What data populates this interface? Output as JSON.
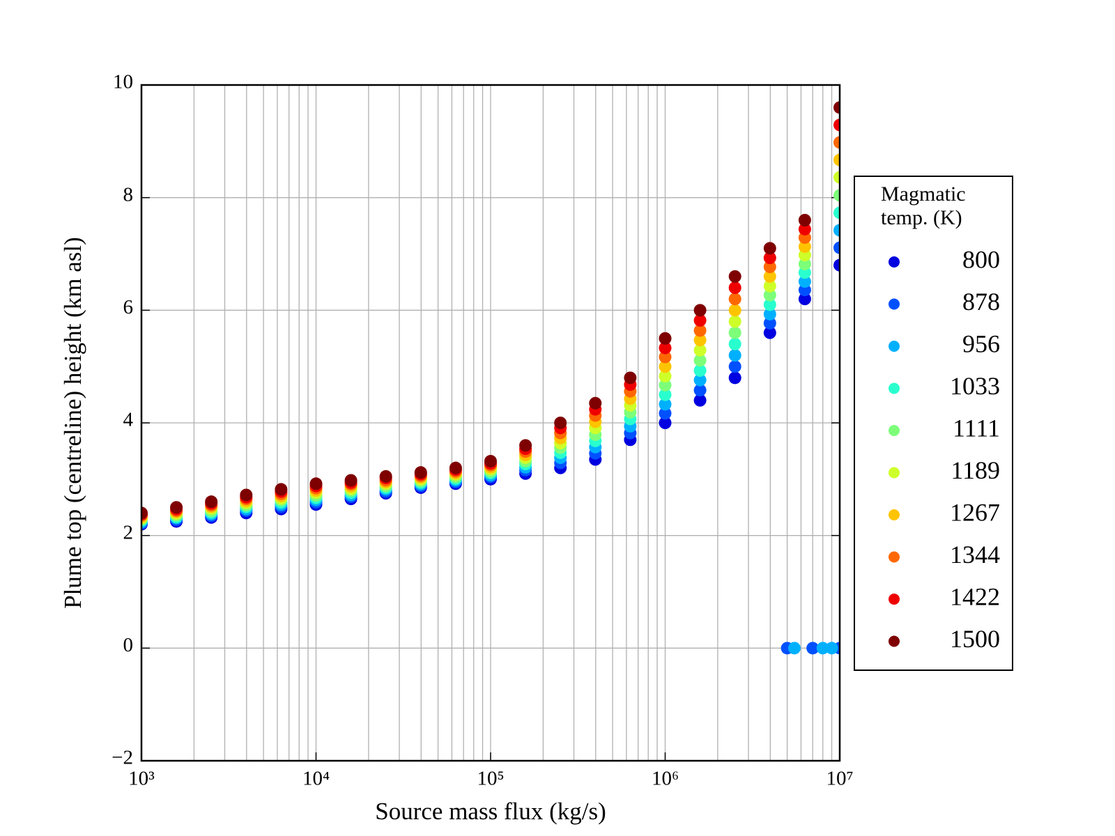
{
  "chart_data": {
    "type": "scatter",
    "x_label": "Source mass flux (kg/s)",
    "y_label": "Plume top (centreline) height (km asl)",
    "legend_title": "Magmatic temp. (K)",
    "legend": "outside-right",
    "xscale": "log",
    "grid": true,
    "xlim": [
      1000,
      10000000
    ],
    "ylim": [
      -2,
      10
    ],
    "xticks": [
      {
        "value": 1000,
        "label": "10³"
      },
      {
        "value": 10000,
        "label": "10⁴"
      },
      {
        "value": 100000,
        "label": "10⁵"
      },
      {
        "value": 1000000,
        "label": "10⁶"
      },
      {
        "value": 10000000,
        "label": "10⁷"
      }
    ],
    "yticks": [
      {
        "value": -2,
        "label": "−2"
      },
      0,
      2,
      4,
      6,
      8,
      10
    ],
    "series": [
      {
        "name": "800",
        "color": "#0000e0",
        "x": [
          1000,
          1585,
          2512,
          3981,
          6310,
          10000,
          15849,
          25119,
          39811,
          63096,
          100000,
          158489,
          251189,
          398107,
          630957,
          1000000,
          1584893,
          2511886,
          3981072,
          6309573,
          10000000
        ],
        "values": [
          2.2,
          2.25,
          2.32,
          2.4,
          2.47,
          2.55,
          2.65,
          2.75,
          2.85,
          2.92,
          3.0,
          3.1,
          3.2,
          3.35,
          3.7,
          4.0,
          4.4,
          4.8,
          5.6,
          6.2,
          6.8
        ]
      },
      {
        "name": "878",
        "color": "#0050ff",
        "x": [
          1000,
          1585,
          2512,
          3981,
          6310,
          10000,
          15849,
          25119,
          39811,
          63096,
          100000,
          158489,
          251189,
          398107,
          630957,
          1000000,
          1584893,
          2511886,
          3981072,
          6309573,
          10000000,
          5000000,
          7000000,
          10000000
        ],
        "values": [
          2.22,
          2.28,
          2.35,
          2.44,
          2.51,
          2.59,
          2.69,
          2.78,
          2.88,
          2.95,
          3.04,
          3.16,
          3.29,
          3.46,
          3.82,
          4.17,
          4.58,
          5.0,
          5.77,
          6.36,
          7.11,
          0,
          0,
          0
        ]
      },
      {
        "name": "956",
        "color": "#00b0ff",
        "x": [
          1000,
          1585,
          2512,
          3981,
          6310,
          10000,
          15849,
          25119,
          39811,
          63096,
          100000,
          158489,
          251189,
          398107,
          630957,
          1000000,
          1584893,
          2511886,
          3981072,
          6309573,
          10000000,
          5500000,
          8000000,
          9000000
        ],
        "values": [
          2.24,
          2.31,
          2.38,
          2.47,
          2.55,
          2.63,
          2.72,
          2.82,
          2.91,
          2.98,
          3.07,
          3.21,
          3.38,
          3.57,
          3.94,
          4.33,
          4.76,
          5.2,
          5.93,
          6.51,
          7.42,
          0,
          0,
          0
        ]
      },
      {
        "name": "1033",
        "color": "#29ffce",
        "x": [
          1000,
          1585,
          2512,
          3981,
          6310,
          10000,
          15849,
          25119,
          39811,
          63096,
          100000,
          158489,
          251189,
          398107,
          630957,
          1000000,
          1584893,
          2511886,
          3981072,
          6309573,
          10000000
        ],
        "values": [
          2.27,
          2.33,
          2.41,
          2.51,
          2.59,
          2.67,
          2.76,
          2.85,
          2.94,
          3.01,
          3.11,
          3.27,
          3.47,
          3.68,
          4.07,
          4.5,
          4.93,
          5.4,
          6.1,
          6.67,
          7.73
        ]
      },
      {
        "name": "1111",
        "color": "#7dff7a",
        "x": [
          1000,
          1585,
          2512,
          3981,
          6310,
          10000,
          15849,
          25119,
          39811,
          63096,
          100000,
          158489,
          251189,
          398107,
          630957,
          1000000,
          1584893,
          2511886,
          3981072,
          6309573,
          10000000
        ],
        "values": [
          2.29,
          2.36,
          2.44,
          2.54,
          2.63,
          2.71,
          2.8,
          2.88,
          2.97,
          3.04,
          3.14,
          3.32,
          3.56,
          3.79,
          4.19,
          4.67,
          5.11,
          5.6,
          6.27,
          6.82,
          8.04
        ]
      },
      {
        "name": "1189",
        "color": "#ceff29",
        "x": [
          1000,
          1585,
          2512,
          3981,
          6310,
          10000,
          15849,
          25119,
          39811,
          63096,
          100000,
          158489,
          251189,
          398107,
          630957,
          1000000,
          1584893,
          2511886,
          3981072,
          6309573,
          10000000
        ],
        "values": [
          2.31,
          2.39,
          2.48,
          2.58,
          2.66,
          2.76,
          2.83,
          2.92,
          3.0,
          3.08,
          3.18,
          3.38,
          3.64,
          3.91,
          4.31,
          4.83,
          5.29,
          5.8,
          6.43,
          6.98,
          8.36
        ]
      },
      {
        "name": "1267",
        "color": "#ffc400",
        "x": [
          1000,
          1585,
          2512,
          3981,
          6310,
          10000,
          15849,
          25119,
          39811,
          63096,
          100000,
          158489,
          251189,
          398107,
          630957,
          1000000,
          1584893,
          2511886,
          3981072,
          6309573,
          10000000
        ],
        "values": [
          2.33,
          2.42,
          2.51,
          2.61,
          2.7,
          2.8,
          2.87,
          2.95,
          3.03,
          3.11,
          3.21,
          3.43,
          3.73,
          4.02,
          4.43,
          5.0,
          5.47,
          6.0,
          6.6,
          7.13,
          8.67
        ]
      },
      {
        "name": "1344",
        "color": "#ff6800",
        "x": [
          1000,
          1585,
          2512,
          3981,
          6310,
          10000,
          15849,
          25119,
          39811,
          63096,
          100000,
          158489,
          251189,
          398107,
          630957,
          1000000,
          1584893,
          2511886,
          3981072,
          6309573,
          10000000
        ],
        "values": [
          2.36,
          2.44,
          2.54,
          2.65,
          2.74,
          2.84,
          2.91,
          2.98,
          3.06,
          3.14,
          3.25,
          3.49,
          3.82,
          4.13,
          4.56,
          5.17,
          5.64,
          6.2,
          6.77,
          7.29,
          8.98
        ]
      },
      {
        "name": "1422",
        "color": "#ef0000",
        "x": [
          1000,
          1585,
          2512,
          3981,
          6310,
          10000,
          15849,
          25119,
          39811,
          63096,
          100000,
          158489,
          251189,
          398107,
          630957,
          1000000,
          1584893,
          2511886,
          3981072,
          6309573,
          10000000
        ],
        "values": [
          2.38,
          2.47,
          2.57,
          2.68,
          2.78,
          2.88,
          2.94,
          3.02,
          3.09,
          3.17,
          3.28,
          3.54,
          3.91,
          4.24,
          4.68,
          5.33,
          5.82,
          6.4,
          6.93,
          7.44,
          9.29
        ]
      },
      {
        "name": "1500",
        "color": "#7f0000",
        "x": [
          1000,
          1585,
          2512,
          3981,
          6310,
          10000,
          15849,
          25119,
          39811,
          63096,
          100000,
          158489,
          251189,
          398107,
          630957,
          1000000,
          1584893,
          2511886,
          3981072,
          6309573,
          10000000
        ],
        "values": [
          2.4,
          2.5,
          2.6,
          2.72,
          2.82,
          2.92,
          2.98,
          3.05,
          3.12,
          3.2,
          3.32,
          3.6,
          4.0,
          4.35,
          4.8,
          5.5,
          6.0,
          6.6,
          7.1,
          7.6,
          9.6
        ]
      }
    ]
  }
}
